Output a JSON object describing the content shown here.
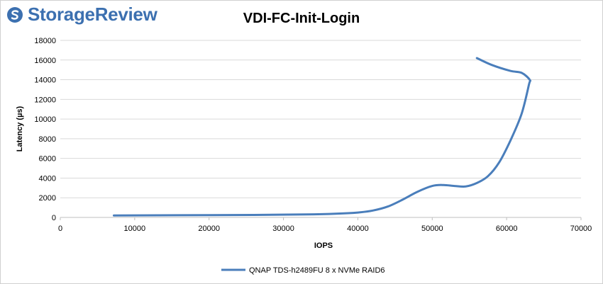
{
  "logo": {
    "text": "StorageReview",
    "color": "#3c70b0"
  },
  "chart_data": {
    "type": "line",
    "title": "VDI-FC-Init-Login",
    "xlabel": "IOPS",
    "ylabel": "Latency (µs)",
    "xlim": [
      0,
      70000
    ],
    "ylim": [
      0,
      18000
    ],
    "x_ticks": [
      0,
      10000,
      20000,
      30000,
      40000,
      50000,
      60000,
      70000
    ],
    "y_ticks": [
      0,
      2000,
      4000,
      6000,
      8000,
      10000,
      12000,
      14000,
      16000,
      18000
    ],
    "grid": "horizontal",
    "legend_position": "bottom",
    "series": [
      {
        "name": "QNAP TDS-h2489FU 8 x NVMe RAID6",
        "color": "#4a7ebb",
        "points": [
          [
            7200,
            200
          ],
          [
            16000,
            220
          ],
          [
            26000,
            250
          ],
          [
            33000,
            300
          ],
          [
            37000,
            380
          ],
          [
            40000,
            500
          ],
          [
            42000,
            700
          ],
          [
            44000,
            1100
          ],
          [
            46000,
            1800
          ],
          [
            48000,
            2600
          ],
          [
            50000,
            3200
          ],
          [
            51500,
            3300
          ],
          [
            53000,
            3200
          ],
          [
            54500,
            3150
          ],
          [
            56000,
            3500
          ],
          [
            57500,
            4200
          ],
          [
            59000,
            5600
          ],
          [
            60500,
            7800
          ],
          [
            62000,
            10500
          ],
          [
            63000,
            13500
          ],
          [
            63100,
            14000
          ],
          [
            62000,
            14700
          ],
          [
            60500,
            14900
          ],
          [
            58000,
            15500
          ],
          [
            56000,
            16200
          ]
        ]
      }
    ]
  }
}
